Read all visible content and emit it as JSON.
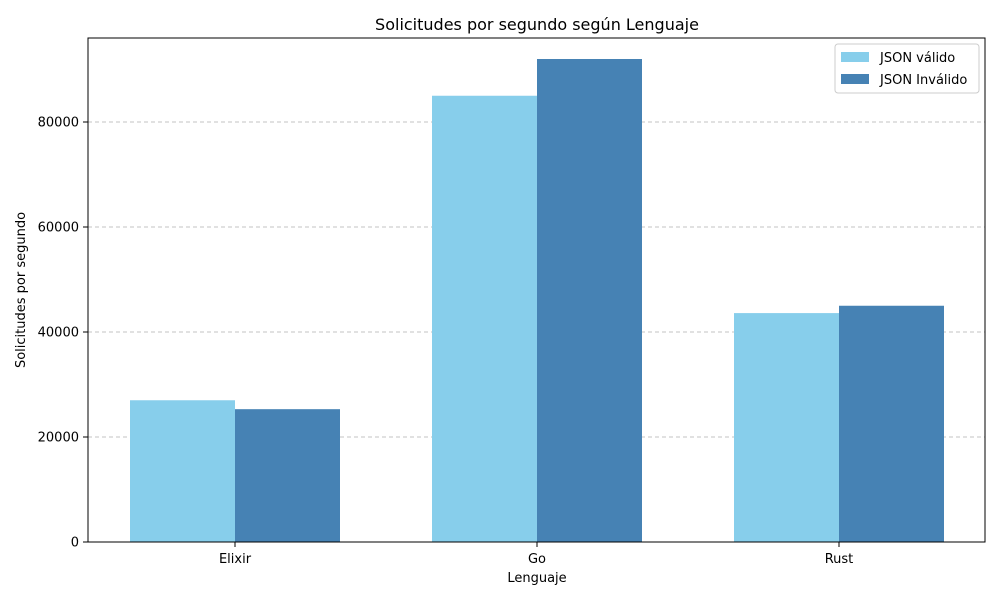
{
  "chart_data": {
    "type": "bar",
    "title": "Solicitudes por segundo según Lenguaje",
    "xlabel": "Lenguaje",
    "ylabel": "Solicitudes por segundo",
    "categories": [
      "Elixir",
      "Go",
      "Rust"
    ],
    "series": [
      {
        "name": "JSON válido",
        "values": [
          27000,
          85000,
          43600
        ],
        "color": "#87CEEB"
      },
      {
        "name": "JSON Inválido",
        "values": [
          25300,
          92000,
          45000
        ],
        "color": "#4682B4"
      }
    ],
    "ylim": [
      0,
      96000
    ],
    "yticks": [
      0,
      20000,
      40000,
      60000,
      80000
    ],
    "grid": "y, dashed",
    "legend_position": "top-right"
  }
}
